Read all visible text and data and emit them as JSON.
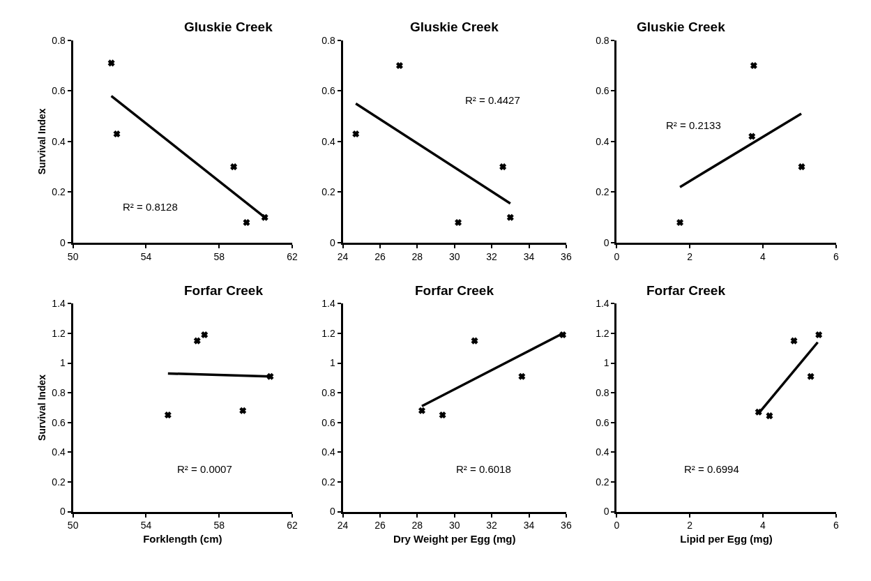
{
  "chart_data": [
    {
      "type": "scatter",
      "title": "Gluskie Creek",
      "ylabel": "Survival Index",
      "xlim": [
        50,
        62
      ],
      "xticks": [
        50,
        54,
        58,
        62
      ],
      "ylim": [
        0,
        0.8
      ],
      "yticks": [
        0,
        0.2,
        0.4,
        0.6,
        0.8
      ],
      "grid": false,
      "annotations": [
        "R² = 0.8128"
      ],
      "series": [
        {
          "color": "#000000",
          "marker": "cross",
          "x": [
            52.1,
            52.4,
            58.8,
            59.5,
            60.5
          ],
          "values": [
            0.71,
            0.43,
            0.3,
            0.08,
            0.1
          ]
        },
        {
          "type": "line",
          "color": "#000000",
          "line_style": "solid",
          "x": [
            52.1,
            60.5
          ],
          "values": [
            0.58,
            0.1
          ]
        }
      ]
    },
    {
      "type": "scatter",
      "title": "Gluskie Creek",
      "xlim": [
        24,
        36
      ],
      "xticks": [
        24,
        26,
        28,
        30,
        32,
        34,
        36
      ],
      "ylim": [
        0,
        0.8
      ],
      "yticks": [
        0,
        0.2,
        0.4,
        0.6,
        0.8
      ],
      "grid": false,
      "annotations": [
        "R² = 0.4427"
      ],
      "series": [
        {
          "color": "#000000",
          "marker": "cross",
          "x": [
            24.7,
            27.05,
            30.2,
            32.6,
            33.0
          ],
          "values": [
            0.43,
            0.7,
            0.08,
            0.3,
            0.1
          ]
        },
        {
          "type": "line",
          "color": "#000000",
          "line_style": "solid",
          "x": [
            24.7,
            33.0
          ],
          "values": [
            0.55,
            0.155
          ]
        }
      ]
    },
    {
      "type": "scatter",
      "title": "Gluskie Creek",
      "xlim": [
        0,
        6
      ],
      "xticks": [
        0,
        2,
        4,
        6
      ],
      "ylim": [
        0,
        0.8
      ],
      "yticks": [
        0,
        0.2,
        0.4,
        0.6,
        0.8
      ],
      "grid": false,
      "annotations": [
        "R² = 0.2133"
      ],
      "series": [
        {
          "color": "#000000",
          "marker": "cross",
          "x": [
            1.73,
            3.75,
            3.7,
            5.06
          ],
          "values": [
            0.08,
            0.7,
            0.42,
            0.3
          ]
        },
        {
          "type": "line",
          "color": "#000000",
          "line_style": "solid",
          "x": [
            1.73,
            5.05
          ],
          "values": [
            0.22,
            0.51
          ]
        }
      ]
    },
    {
      "type": "scatter",
      "title": "Forfar Creek",
      "xlabel": "Forklength (cm)",
      "ylabel": "Survival Index",
      "xlim": [
        50,
        62
      ],
      "xticks": [
        50,
        54,
        58,
        62
      ],
      "ylim": [
        0,
        1.4
      ],
      "yticks": [
        0,
        0.2,
        0.4,
        0.6,
        0.8,
        1,
        1.2,
        1.4
      ],
      "grid": false,
      "annotations": [
        "R² = 0.0007"
      ],
      "series": [
        {
          "color": "#000000",
          "marker": "cross",
          "x": [
            55.2,
            56.8,
            57.2,
            59.3,
            60.8
          ],
          "values": [
            0.65,
            1.15,
            1.19,
            0.68,
            0.91
          ]
        },
        {
          "type": "line",
          "color": "#000000",
          "line_style": "solid",
          "x": [
            55.2,
            60.8
          ],
          "values": [
            0.93,
            0.91
          ]
        }
      ]
    },
    {
      "type": "scatter",
      "title": "Forfar Creek",
      "xlabel": "Dry Weight per Egg (mg)",
      "xlim": [
        24,
        36
      ],
      "xticks": [
        24,
        26,
        28,
        30,
        32,
        34,
        36
      ],
      "ylim": [
        0,
        1.4
      ],
      "yticks": [
        0,
        0.2,
        0.4,
        0.6,
        0.8,
        1,
        1.2,
        1.4
      ],
      "grid": false,
      "annotations": [
        "R² = 0.6018"
      ],
      "series": [
        {
          "color": "#000000",
          "marker": "cross",
          "x": [
            28.25,
            29.36,
            31.08,
            33.62,
            35.82
          ],
          "values": [
            0.68,
            0.65,
            1.15,
            0.91,
            1.19
          ]
        },
        {
          "type": "line",
          "color": "#000000",
          "line_style": "solid",
          "x": [
            28.25,
            35.82
          ],
          "values": [
            0.71,
            1.2
          ]
        }
      ]
    },
    {
      "type": "scatter",
      "title": "Forfar Creek",
      "xlabel": "Lipid per Egg (mg)",
      "xlim": [
        0,
        6
      ],
      "xticks": [
        0,
        2,
        4,
        6
      ],
      "ylim": [
        0,
        1.4
      ],
      "yticks": [
        0,
        0.2,
        0.4,
        0.6,
        0.8,
        1,
        1.2,
        1.4
      ],
      "grid": false,
      "annotations": [
        "R² = 0.6994"
      ],
      "series": [
        {
          "color": "#000000",
          "marker": "cross",
          "x": [
            3.88,
            4.18,
            4.85,
            5.31,
            5.53
          ],
          "values": [
            0.67,
            0.645,
            1.15,
            0.91,
            1.19
          ]
        },
        {
          "type": "line",
          "color": "#000000",
          "line_style": "solid",
          "x": [
            3.88,
            5.5
          ],
          "values": [
            0.66,
            1.14
          ]
        }
      ]
    }
  ]
}
